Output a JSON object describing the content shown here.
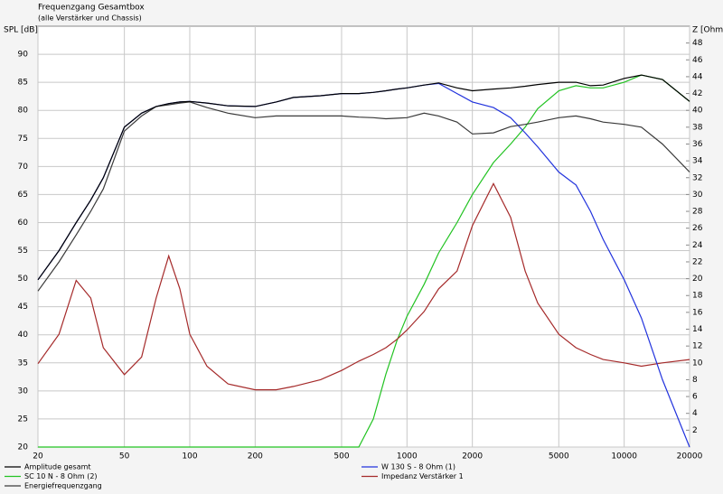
{
  "chart_data": {
    "type": "line",
    "title": "Frequenzgang Gesamtbox",
    "subtitle": "(alle Verstärker und Chassis)",
    "y_label": "SPL [dB]",
    "y2_label": "Z [Ohm]",
    "x_scale": "log",
    "grid": true,
    "x": [
      20,
      25,
      30,
      35,
      40,
      50,
      60,
      70,
      80,
      90,
      100,
      120,
      150,
      200,
      250,
      300,
      400,
      500,
      600,
      700,
      800,
      900,
      1000,
      1200,
      1400,
      1700,
      2000,
      2500,
      3000,
      3500,
      4000,
      5000,
      6000,
      7000,
      8000,
      10000,
      12000,
      15000,
      20000
    ],
    "xlim": [
      20,
      20000
    ],
    "xticks": [
      20,
      50,
      100,
      200,
      500,
      1000,
      2000,
      5000,
      10000,
      20000
    ],
    "ylim": [
      20,
      95
    ],
    "yticks": [
      20,
      25,
      30,
      35,
      40,
      45,
      50,
      55,
      60,
      65,
      70,
      75,
      80,
      85,
      90
    ],
    "y2lim": [
      0,
      50
    ],
    "y2ticks": [
      2,
      4,
      6,
      8,
      10,
      12,
      14,
      16,
      18,
      20,
      22,
      24,
      26,
      28,
      30,
      32,
      34,
      36,
      38,
      40,
      42,
      44,
      46,
      48
    ],
    "series": [
      {
        "name": "Amplitude gesamt",
        "color": "#000000",
        "values": [
          49.8,
          55,
          60,
          64,
          68,
          77,
          79.5,
          80.7,
          81.2,
          81.5,
          81.6,
          81.3,
          80.8,
          80.7,
          81.5,
          82.3,
          82.6,
          83,
          83,
          83.2,
          83.5,
          83.8,
          84,
          84.5,
          84.9,
          84,
          83.5,
          83.8,
          84,
          84.3,
          84.6,
          85,
          85,
          84.4,
          84.5,
          85.7,
          86.3,
          85.5,
          81.6
        ]
      },
      {
        "name": "SC 10 N - 8 Ohm (2)",
        "color": "#22c322",
        "values": [
          20,
          20,
          20,
          20,
          20,
          20,
          20,
          20,
          20,
          20,
          20,
          20,
          20,
          20,
          20,
          20,
          20,
          20,
          20,
          25,
          33,
          39,
          43.3,
          49,
          54.6,
          60,
          65,
          70.7,
          74,
          77,
          80.3,
          83.5,
          84.4,
          84,
          84,
          85,
          86.3,
          85.5,
          81.6
        ]
      },
      {
        "name": "Energiefrequenzgang",
        "color": "#3a3a3a",
        "values": [
          47.8,
          53,
          57.8,
          62,
          66,
          76.3,
          79,
          80.7,
          81,
          81.3,
          81.5,
          80.5,
          79.5,
          78.7,
          79,
          79,
          79,
          79,
          78.8,
          78.7,
          78.5,
          78.6,
          78.7,
          79.5,
          79,
          77.9,
          75.8,
          76,
          77.1,
          77.5,
          77.9,
          78.7,
          79,
          78.5,
          77.9,
          77.5,
          77,
          74,
          69
        ]
      },
      {
        "name": "W 130 S - 8 Ohm (1)",
        "color": "#2233dd",
        "values": [
          49.8,
          55,
          60,
          64,
          68,
          77,
          79.5,
          80.7,
          81.2,
          81.5,
          81.6,
          81.3,
          80.8,
          80.7,
          81.5,
          82.3,
          82.6,
          83,
          83,
          83.2,
          83.5,
          83.8,
          84,
          84.5,
          84.8,
          83,
          81.5,
          80.5,
          78.7,
          76,
          73.5,
          69,
          66.7,
          62,
          57,
          49.8,
          43,
          32,
          20
        ]
      },
      {
        "name": "Impedanz Verstärker 1",
        "color": "#a52a2a",
        "axis": "y2",
        "values": [
          9.9,
          13.4,
          19.8,
          17.7,
          11.8,
          8.6,
          10.7,
          17.7,
          22.7,
          18.8,
          13.4,
          9.6,
          7.5,
          6.8,
          6.8,
          7.2,
          8,
          9.1,
          10.2,
          11,
          11.8,
          12.8,
          13.9,
          16.1,
          18.8,
          20.9,
          26.3,
          31.3,
          27.3,
          20.9,
          17.1,
          13.4,
          11.8,
          11,
          10.4,
          10,
          9.6,
          10,
          10.4
        ]
      }
    ]
  }
}
